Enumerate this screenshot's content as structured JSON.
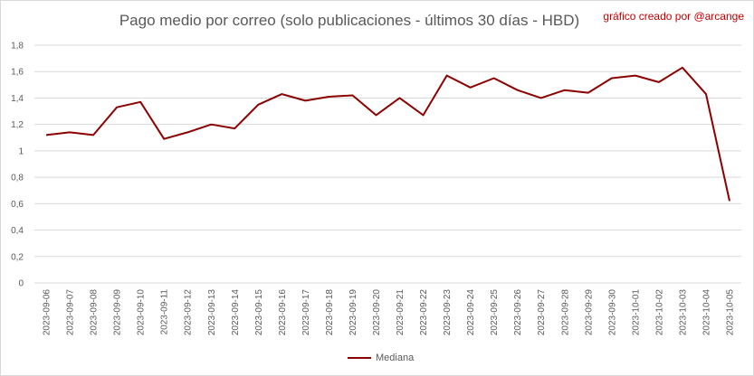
{
  "chart_title": "Pago medio por correo (solo publicaciones - últimos 30 días - HBD)",
  "credit": "gráfico creado por @arcange",
  "colors": {
    "series": "#8b0000",
    "grid": "#d9d9d9",
    "axis_text": "#595959",
    "credit": "#c00000"
  },
  "chart_data": {
    "type": "line",
    "title": "Pago medio por correo (solo publicaciones - últimos 30 días - HBD)",
    "xlabel": "",
    "ylabel": "",
    "ylim": [
      0,
      1.8
    ],
    "yticks": [
      0,
      0.2,
      0.4,
      0.6,
      0.8,
      1,
      1.2,
      1.4,
      1.6,
      1.8
    ],
    "ytick_labels": [
      "0",
      "0,2",
      "0,4",
      "0,6",
      "0,8",
      "1",
      "1,2",
      "1,4",
      "1,6",
      "1,8"
    ],
    "grid": true,
    "legend_position": "bottom",
    "categories": [
      "2023-09-06",
      "2023-09-07",
      "2023-09-08",
      "2023-09-09",
      "2023-09-10",
      "2023-09-11",
      "2023-09-12",
      "2023-09-13",
      "2023-09-14",
      "2023-09-15",
      "2023-09-16",
      "2023-09-17",
      "2023-09-18",
      "2023-09-19",
      "2023-09-20",
      "2023-09-21",
      "2023-09-22",
      "2023-09-23",
      "2023-09-24",
      "2023-09-25",
      "2023-09-26",
      "2023-09-27",
      "2023-09-28",
      "2023-09-29",
      "2023-09-30",
      "2023-10-01",
      "2023-10-02",
      "2023-10-03",
      "2023-10-04",
      "2023-10-05"
    ],
    "series": [
      {
        "name": "Mediana",
        "color": "#8b0000",
        "values": [
          1.12,
          1.14,
          1.12,
          1.33,
          1.37,
          1.09,
          1.14,
          1.2,
          1.17,
          1.35,
          1.43,
          1.38,
          1.41,
          1.42,
          1.27,
          1.4,
          1.27,
          1.57,
          1.48,
          1.55,
          1.46,
          1.4,
          1.46,
          1.44,
          1.55,
          1.57,
          1.52,
          1.63,
          1.43,
          0.62
        ]
      }
    ]
  }
}
